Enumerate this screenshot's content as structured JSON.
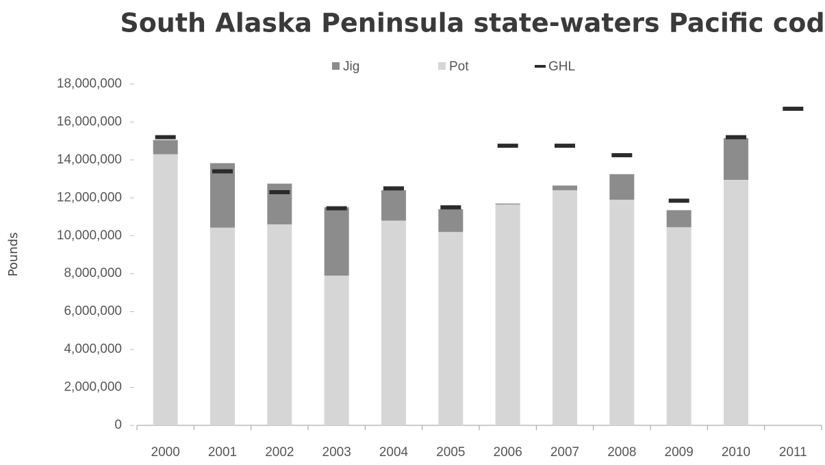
{
  "chart_data": {
    "type": "bar",
    "stacked": true,
    "title": "South Alaska Peninsula state-waters Pacific cod",
    "y_label": "Pounds",
    "categories": [
      "2000",
      "2001",
      "2002",
      "2003",
      "2004",
      "2005",
      "2006",
      "2007",
      "2008",
      "2009",
      "2010",
      "2011"
    ],
    "series": [
      {
        "name": "Jig",
        "color": "#8c8c8c",
        "kind": "bar",
        "values": [
          750000,
          3400000,
          2150000,
          3600000,
          1600000,
          1200000,
          50000,
          250000,
          1350000,
          900000,
          2200000,
          null
        ]
      },
      {
        "name": "Pot",
        "color": "#d6d6d6",
        "kind": "bar",
        "values": [
          14300000,
          10430000,
          10600000,
          7900000,
          10800000,
          10200000,
          11650000,
          12400000,
          11900000,
          10450000,
          12950000,
          null
        ]
      },
      {
        "name": "GHL",
        "color": "#2b2b2b",
        "kind": "marker",
        "values": [
          15200000,
          13400000,
          12300000,
          11450000,
          12500000,
          11500000,
          14750000,
          14750000,
          14250000,
          11850000,
          15200000,
          16700000
        ]
      }
    ],
    "ylim": [
      0,
      18000000
    ],
    "yticks": [
      0,
      {
        "value": 2000000,
        "label": "2,000,000"
      },
      {
        "value": 4000000,
        "label": "4,000,000"
      },
      {
        "value": 6000000,
        "label": "6,000,000"
      },
      {
        "value": 8000000,
        "label": "8,000,000"
      },
      {
        "value": 10000000,
        "label": "10,000,000"
      },
      {
        "value": 12000000,
        "label": "12,000,000"
      },
      {
        "value": 14000000,
        "label": "14,000,000"
      },
      {
        "value": 16000000,
        "label": "16,000,000"
      },
      {
        "value": 18000000,
        "label": "18,000,000"
      }
    ],
    "legend": "top",
    "grid": false
  }
}
